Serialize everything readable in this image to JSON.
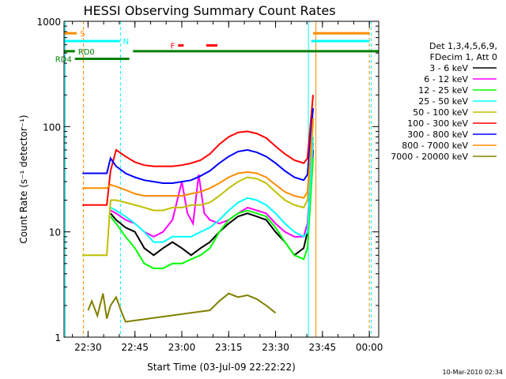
{
  "chart_data": {
    "type": "line",
    "title": "HESSI Observing Summary Count Rates",
    "xlabel": "Start Time (03-Jul-09 22:22:22)",
    "ylabel": "Count Rate (s⁻¹ detector⁻¹)",
    "ylog": true,
    "ylim": [
      1,
      1000
    ],
    "xlim": [
      22.372,
      24.05
    ],
    "x_ticks": [
      {
        "t": 22.5,
        "label": "22:30"
      },
      {
        "t": 22.75,
        "label": "22:45"
      },
      {
        "t": 23.0,
        "label": "23:00"
      },
      {
        "t": 23.25,
        "label": "23:15"
      },
      {
        "t": 23.5,
        "label": "23:30"
      },
      {
        "t": 23.75,
        "label": "23:45"
      },
      {
        "t": 24.0,
        "label": "00:00"
      }
    ],
    "y_ticks": [
      {
        "v": 1,
        "label": "1"
      },
      {
        "v": 10,
        "label": "10"
      },
      {
        "v": 100,
        "label": "100"
      },
      {
        "v": 1000,
        "label": "1000"
      }
    ],
    "legend_header": [
      "Det 1,3,4,5,6,9,",
      "FDecim 1, Att 0"
    ],
    "series": [
      {
        "name": "3 - 6 keV",
        "color": "#000000",
        "x": [
          22.62,
          22.65,
          22.7,
          22.75,
          22.8,
          22.85,
          22.9,
          22.95,
          23.0,
          23.05,
          23.1,
          23.15,
          23.2,
          23.25,
          23.3,
          23.35,
          23.4,
          23.45,
          23.5,
          23.55,
          23.6,
          23.65,
          23.67,
          23.7
        ],
        "y": [
          15,
          13,
          11,
          10,
          7,
          6,
          7,
          8,
          7,
          6,
          7,
          8,
          10,
          12,
          14,
          15,
          14,
          13,
          10,
          8,
          6,
          7,
          10,
          60
        ]
      },
      {
        "name": "6 - 12 keV",
        "color": "#ff00ff",
        "x": [
          22.62,
          22.65,
          22.7,
          22.75,
          22.8,
          22.85,
          22.9,
          22.95,
          23.0,
          23.03,
          23.06,
          23.09,
          23.12,
          23.15,
          23.2,
          23.25,
          23.3,
          23.35,
          23.4,
          23.45,
          23.5,
          23.55,
          23.6,
          23.65,
          23.67,
          23.7
        ],
        "y": [
          16,
          15,
          13,
          12,
          10,
          9,
          10,
          13,
          30,
          15,
          12,
          35,
          15,
          13,
          12,
          13,
          15,
          17,
          16,
          15,
          12,
          10,
          9,
          9,
          12,
          70
        ]
      },
      {
        "name": "12 - 25 keV",
        "color": "#00ff00",
        "x": [
          22.62,
          22.65,
          22.7,
          22.75,
          22.8,
          22.85,
          22.9,
          22.95,
          23.0,
          23.05,
          23.1,
          23.15,
          23.2,
          23.25,
          23.3,
          23.35,
          23.4,
          23.45,
          23.5,
          23.55,
          23.6,
          23.65,
          23.67,
          23.7
        ],
        "y": [
          14,
          12,
          9,
          7,
          5,
          4.5,
          4.5,
          5,
          5,
          5.5,
          6,
          7,
          10,
          13,
          15,
          16,
          15,
          14,
          11,
          8,
          6,
          5.5,
          7,
          50
        ]
      },
      {
        "name": "25 - 50 keV",
        "color": "#00ffff",
        "x": [
          22.62,
          22.65,
          22.7,
          22.75,
          22.8,
          22.85,
          22.9,
          22.95,
          23.0,
          23.05,
          23.1,
          23.15,
          23.2,
          23.25,
          23.3,
          23.35,
          23.4,
          23.45,
          23.5,
          23.55,
          23.6,
          23.65,
          23.67,
          23.7
        ],
        "y": [
          17,
          16,
          14,
          12,
          10,
          8,
          8,
          9,
          9,
          9,
          10,
          11,
          13,
          16,
          19,
          21,
          20,
          18,
          15,
          12,
          10,
          9,
          10,
          80
        ]
      },
      {
        "name": "50 - 100 keV",
        "color": "#c0c000",
        "x": [
          22.47,
          22.5,
          22.55,
          22.6,
          22.62,
          22.65,
          22.7,
          22.75,
          22.8,
          22.85,
          22.9,
          22.95,
          23.0,
          23.05,
          23.1,
          23.15,
          23.2,
          23.25,
          23.3,
          23.35,
          23.4,
          23.45,
          23.5,
          23.55,
          23.6,
          23.65,
          23.67,
          23.7
        ],
        "y": [
          6,
          6,
          6,
          6,
          20,
          20,
          19,
          18,
          17,
          16,
          16,
          17,
          17,
          18,
          18,
          19,
          22,
          26,
          30,
          33,
          32,
          29,
          24,
          20,
          18,
          17,
          20,
          110
        ]
      },
      {
        "name": "100 - 300 keV",
        "color": "#ff0000",
        "x": [
          22.47,
          22.5,
          22.55,
          22.6,
          22.62,
          22.65,
          22.7,
          22.75,
          22.8,
          22.85,
          22.9,
          22.95,
          23.0,
          23.05,
          23.1,
          23.15,
          23.2,
          23.25,
          23.3,
          23.35,
          23.4,
          23.45,
          23.5,
          23.55,
          23.6,
          23.65,
          23.67,
          23.7
        ],
        "y": [
          18,
          18,
          18,
          18,
          38,
          60,
          52,
          46,
          43,
          42,
          42,
          42,
          43,
          45,
          48,
          55,
          68,
          80,
          88,
          90,
          86,
          78,
          65,
          55,
          48,
          45,
          50,
          200
        ]
      },
      {
        "name": "300 - 800 keV",
        "color": "#0000ff",
        "x": [
          22.47,
          22.5,
          22.55,
          22.6,
          22.62,
          22.65,
          22.7,
          22.75,
          22.8,
          22.85,
          22.9,
          22.95,
          23.0,
          23.05,
          23.1,
          23.15,
          23.2,
          23.25,
          23.3,
          23.35,
          23.4,
          23.45,
          23.5,
          23.55,
          23.6,
          23.65,
          23.67,
          23.7
        ],
        "y": [
          36,
          36,
          36,
          36,
          50,
          42,
          36,
          33,
          31,
          30,
          29,
          29,
          30,
          31,
          34,
          38,
          45,
          52,
          58,
          60,
          57,
          52,
          45,
          38,
          33,
          31,
          35,
          150
        ]
      },
      {
        "name": "800 - 7000 keV",
        "color": "#ff8c00",
        "x": [
          22.47,
          22.5,
          22.55,
          22.6,
          22.62,
          22.65,
          22.7,
          22.75,
          22.8,
          22.85,
          22.9,
          22.95,
          23.0,
          23.05,
          23.1,
          23.15,
          23.2,
          23.25,
          23.3,
          23.35,
          23.4,
          23.45,
          23.5,
          23.55,
          23.6,
          23.65,
          23.67,
          23.7
        ],
        "y": [
          26,
          26,
          26,
          26,
          28,
          27,
          25,
          23,
          22,
          22,
          22,
          22,
          22,
          23,
          24,
          26,
          29,
          33,
          36,
          37,
          36,
          33,
          28,
          24,
          22,
          21,
          24,
          120
        ]
      },
      {
        "name": "7000 - 20000 keV",
        "color": "#808000",
        "x": [
          22.5,
          22.52,
          22.55,
          22.58,
          22.6,
          22.62,
          22.65,
          22.68,
          22.7,
          23.15,
          23.2,
          23.25,
          23.3,
          23.35,
          23.4,
          23.45,
          23.5
        ],
        "y": [
          1.8,
          2.2,
          1.6,
          2.6,
          1.5,
          2.0,
          2.4,
          1.7,
          1.4,
          1.8,
          2.2,
          2.6,
          2.4,
          2.5,
          2.3,
          2.0,
          1.7
        ]
      }
    ],
    "flags": [
      {
        "label": "S",
        "color": "#ff8c00",
        "level": 770,
        "label_side": "right",
        "segments": [
          [
            22.372,
            22.44
          ],
          [
            23.7,
            24.0
          ]
        ]
      },
      {
        "label": "N",
        "color": "#00ffff",
        "level": 650,
        "label_side": "right",
        "segments": [
          [
            22.372,
            22.67
          ],
          [
            23.69,
            24.0
          ]
        ]
      },
      {
        "label": "RD0",
        "color": "#008000",
        "level": 520,
        "label_side": "right",
        "segments": [
          [
            22.372,
            22.43
          ],
          [
            22.74,
            24.05
          ]
        ]
      },
      {
        "label": "RD4",
        "color": "#008000",
        "level": 440,
        "label_side": "left",
        "segments": [
          [
            22.43,
            22.72
          ]
        ]
      },
      {
        "label": "F",
        "color": "#ff0000",
        "level": 590,
        "label_side": "left",
        "segments": [
          [
            22.98,
            23.01
          ],
          [
            23.13,
            23.19
          ]
        ]
      }
    ],
    "vertical_markers": [
      {
        "t": 22.378,
        "color": "#00ffff",
        "style": "solid"
      },
      {
        "t": 22.475,
        "color": "#ff8c00",
        "style": "dashed"
      },
      {
        "t": 22.673,
        "color": "#00ffff",
        "style": "dashed"
      },
      {
        "t": 23.675,
        "color": "#00ffff",
        "style": "solid"
      },
      {
        "t": 23.715,
        "color": "#ff8c00",
        "style": "solid"
      },
      {
        "t": 24.0,
        "color": "#ff8c00",
        "style": "dashed"
      },
      {
        "t": 24.01,
        "color": "#00ffff",
        "style": "dashed"
      }
    ],
    "footer": "10-Mar-2010 02:34"
  }
}
